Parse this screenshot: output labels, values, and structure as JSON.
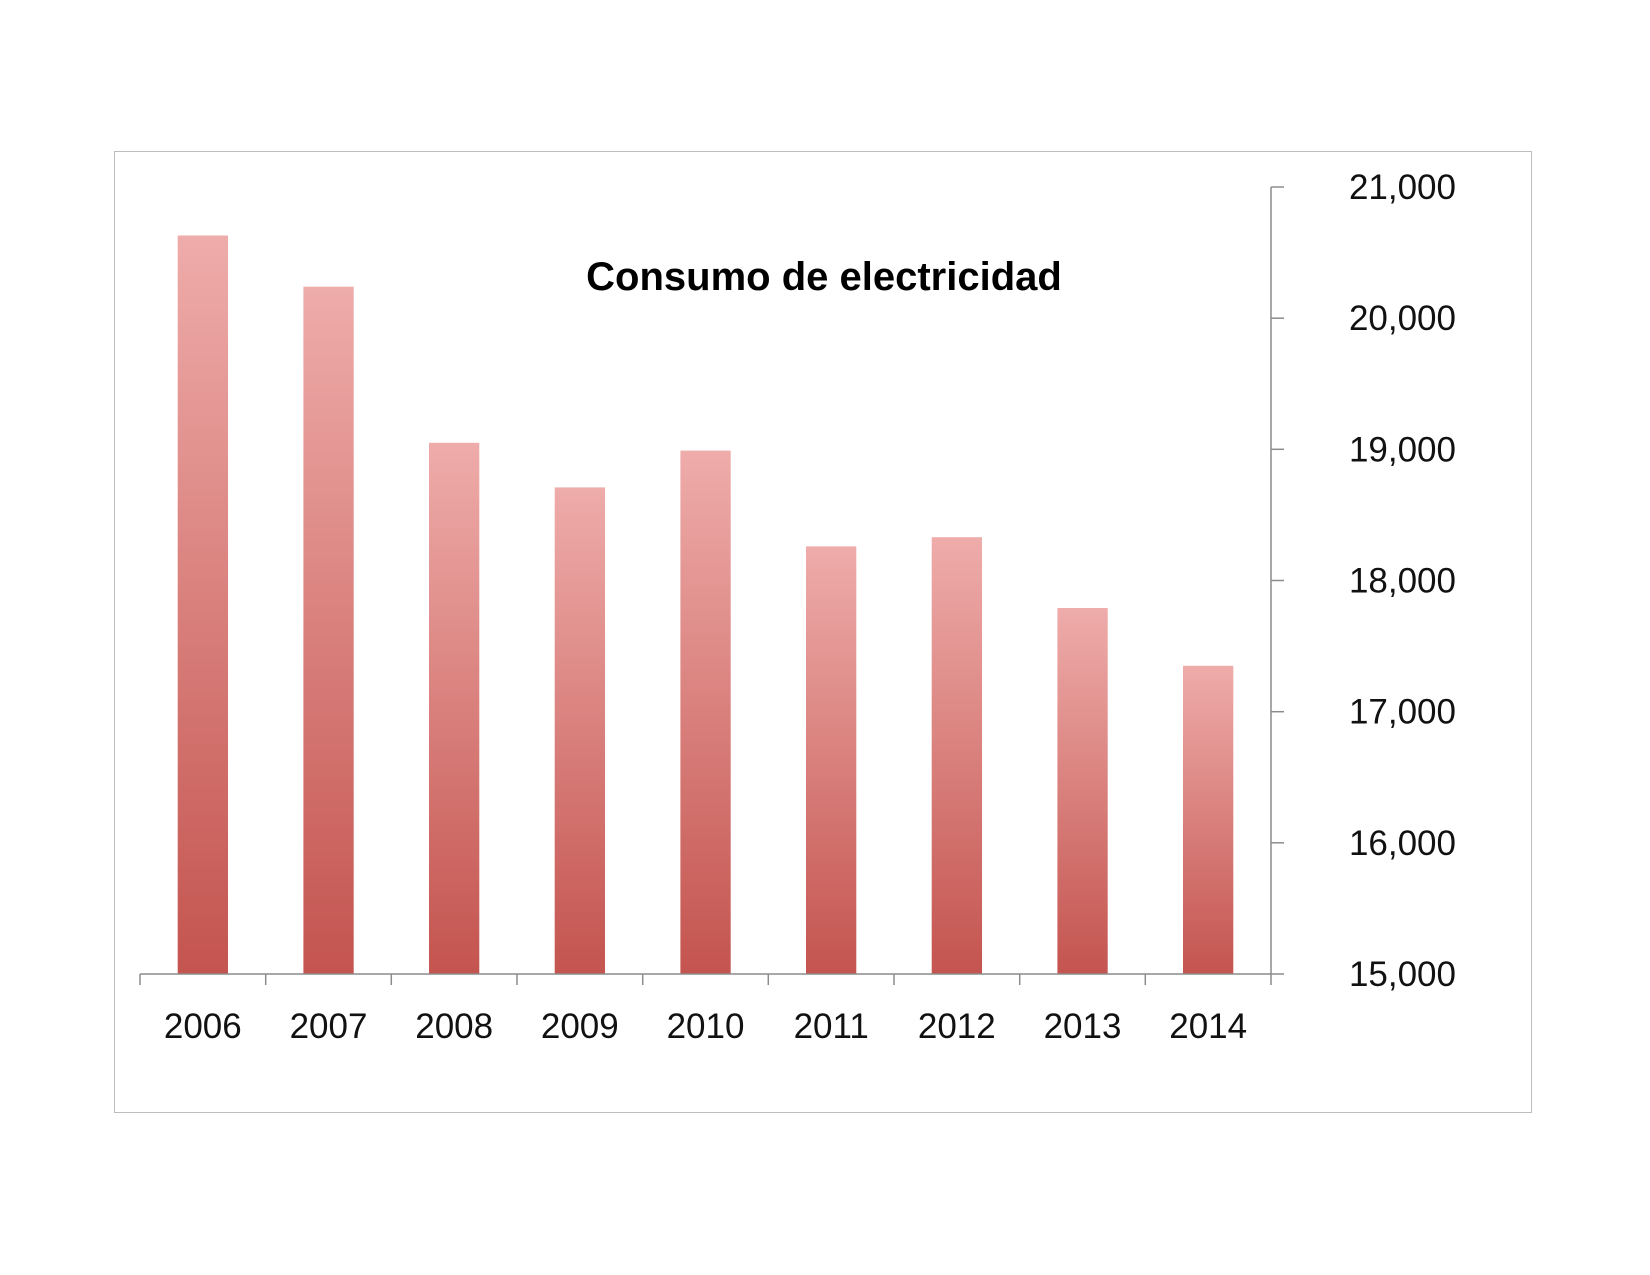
{
  "chart_data": {
    "type": "bar",
    "title": "Consumo de electricidad",
    "xlabel": "",
    "ylabel": "",
    "categories": [
      "2006",
      "2007",
      "2008",
      "2009",
      "2010",
      "2011",
      "2012",
      "2013",
      "2014"
    ],
    "values": [
      20630,
      20240,
      19050,
      18710,
      18990,
      18260,
      18330,
      17790,
      17350
    ],
    "ylim": [
      15000,
      21000
    ],
    "yticks": [
      15000,
      16000,
      17000,
      18000,
      19000,
      20000,
      21000
    ],
    "ytick_labels": [
      "15,000",
      "16,000",
      "17,000",
      "18,000",
      "19,000",
      "20,000",
      "21,000"
    ],
    "y_axis_side": "right",
    "grid": false,
    "legend": "none",
    "bar_color_top": "#eeacaa",
    "bar_color_bottom": "#c4544f"
  }
}
